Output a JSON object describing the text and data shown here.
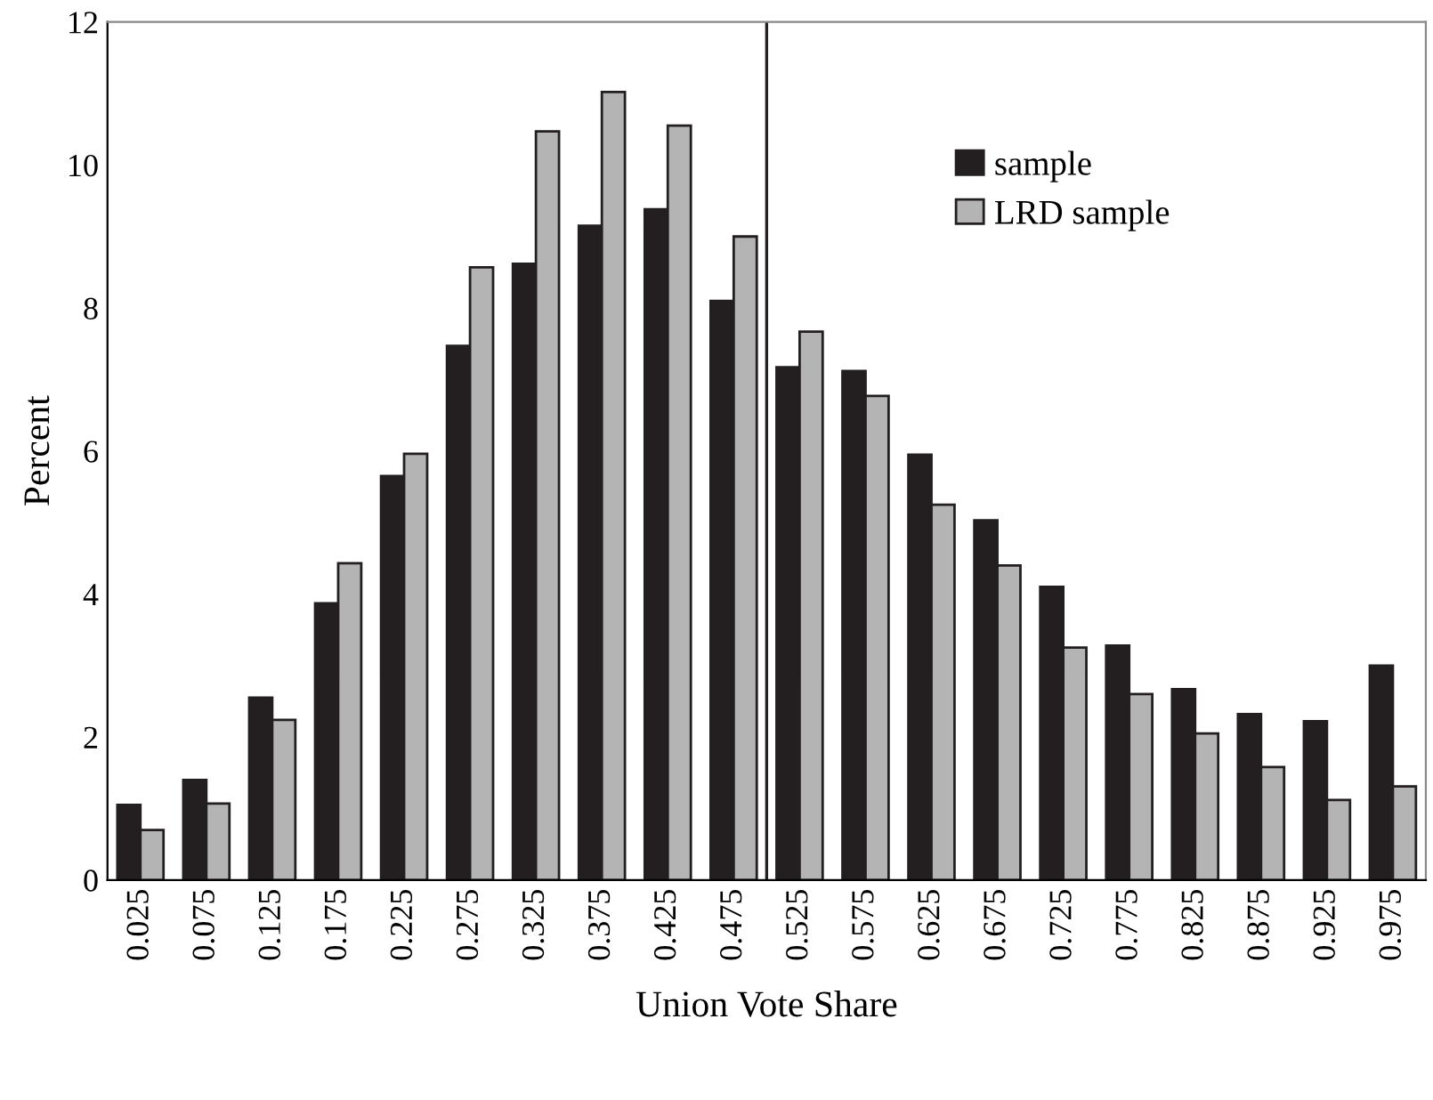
{
  "chart_data": {
    "type": "bar",
    "xlabel": "Union Vote Share",
    "ylabel": "Percent",
    "x": [
      0.025,
      0.075,
      0.125,
      0.175,
      0.225,
      0.275,
      0.325,
      0.375,
      0.425,
      0.475,
      0.525,
      0.575,
      0.625,
      0.675,
      0.725,
      0.775,
      0.825,
      0.875,
      0.925,
      0.975
    ],
    "xlim": [
      0,
      1
    ],
    "xticks": [
      0.025,
      0.075,
      0.125,
      0.175,
      0.225,
      0.275,
      0.325,
      0.375,
      0.425,
      0.475,
      0.525,
      0.575,
      0.625,
      0.675,
      0.725,
      0.775,
      0.825,
      0.875,
      0.925,
      0.975
    ],
    "ylim": [
      0,
      12
    ],
    "yticks": [
      0,
      2,
      4,
      6,
      8,
      10,
      12
    ],
    "series": [
      {
        "name": "sample",
        "color": "#231f20",
        "values": [
          1.05,
          1.4,
          2.55,
          3.87,
          5.65,
          7.47,
          8.62,
          9.15,
          9.38,
          8.1,
          7.17,
          7.12,
          5.95,
          5.03,
          4.1,
          3.28,
          2.67,
          2.32,
          2.22,
          3.0
        ]
      },
      {
        "name": "LRD sample",
        "color": "#b4b4b4",
        "values": [
          0.7,
          1.07,
          2.24,
          4.43,
          5.96,
          8.57,
          10.47,
          11.02,
          10.55,
          9.0,
          7.67,
          6.77,
          5.25,
          4.4,
          3.25,
          2.6,
          2.05,
          1.58,
          1.12,
          1.31
        ]
      }
    ],
    "ref_lines": [
      {
        "axis": "x",
        "value": 0.5,
        "color": "#231f20"
      }
    ],
    "grid": false,
    "legend": "top right"
  }
}
